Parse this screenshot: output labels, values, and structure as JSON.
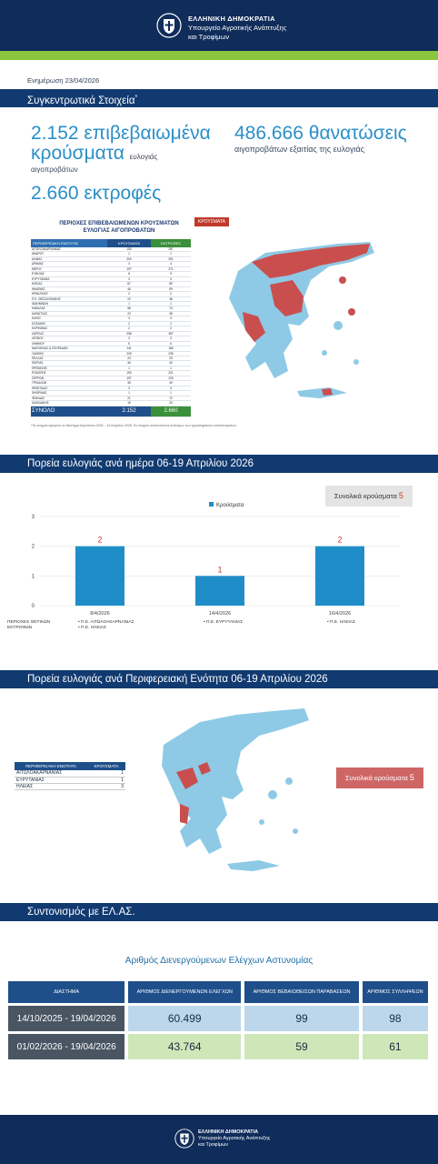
{
  "header": {
    "line1": "ΕΛΛΗΝΙΚΗ ΔΗΜΟΚΡΑΤΙΑ",
    "line2": "Υπουργείο Αγροτικής Ανάπτυξης",
    "line3": "και Τροφίμων"
  },
  "update_text": "Ενημέρωση 23/04/2026",
  "sections": {
    "summary": "Συγκεντρωτικά Στοιχεία",
    "summary_mark": "*",
    "daily": "Πορεία ευλογιάς ανά ημέρα 06-19 Απριλίου 2026",
    "regional": "Πορεία ευλογιάς ανά Περιφερειακή Ενότητα 06-19 Απριλίου 2026",
    "police": "Συντονισμός με ΕΛ.ΑΣ."
  },
  "summary": {
    "cases_number": "2.152",
    "cases_word1": "επιβεβαιωμένα",
    "cases_word2": "κρούσματα",
    "cases_small1": "ευλογιάς",
    "cases_small2": "αιγοπροβάτων",
    "deaths_number": "486.666",
    "deaths_word": "θανατώσεις",
    "deaths_sub": "αιγοπροβάτων εξαιτίας της ευλογιάς",
    "farms_number": "2.660",
    "farms_word": "εκτροφές"
  },
  "region_table": {
    "title1": "ΠΕΡΙΟΧΕΣ ΕΠΙΒΕΒΑΙΩΜΕΝΩΝ ΚΡΟΥΣΜΑΤΩΝ",
    "title2": "ΕΥΛΟΓΙΑΣ ΑΙΓΟΠΡΟΒΑΤΩΝ",
    "headers": [
      "ΠΕΡΙΦΕΡΕΙΑΚΗ ΕΝΟΤΗΤΑ",
      "ΚΡΟΥΣΜΑΤΑ",
      "ΕΚΤΡΟΦΕΣ"
    ],
    "rows": [
      [
        "ΑΙΤΩΛΟΑΚΑΡΝΑΝΙΑΣ",
        "150",
        "287"
      ],
      [
        "ΑΝΔΡΟΥ",
        "1",
        "1"
      ],
      [
        "ΑΧΑΪΑΣ",
        "200",
        "251"
      ],
      [
        "ΔΡΑΜΑΣ",
        "4",
        "4"
      ],
      [
        "ΕΒΡΟΥ",
        "197",
        "271"
      ],
      [
        "ΕΥΒΟΙΑΣ",
        "8",
        "9"
      ],
      [
        "ΕΥΡΥΤΑΝΙΑΣ",
        "3",
        "3"
      ],
      [
        "ΗΛΕΙΑΣ",
        "67",
        "89"
      ],
      [
        "ΗΜΑΘΙΑΣ",
        "46",
        "59"
      ],
      [
        "ΗΡΑΚΛΕΙΟΥ",
        "2",
        "2"
      ],
      [
        "Π.Ε. ΘΕΣΣΑΛΟΝΙΚΗΣ",
        "22",
        "38"
      ],
      [
        "ΙΩΑΝΝΙΝΩΝ",
        "1",
        "1"
      ],
      [
        "ΚΑΒΑΛΑΣ",
        "58",
        "73"
      ],
      [
        "ΚΑΡΔΙΤΣΑΣ",
        "20",
        "38"
      ],
      [
        "ΚΙΛΚΙΣ",
        "3",
        "3"
      ],
      [
        "ΚΟΖΑΝΗΣ",
        "2",
        "2"
      ],
      [
        "ΚΟΡΙΝΘΙΑΣ",
        "2",
        "2"
      ],
      [
        "ΛΑΡΙΣΑΣ",
        "258",
        "387"
      ],
      [
        "ΛΕΣΒΟΥ",
        "3",
        "3"
      ],
      [
        "ΛΗΜΝΟΥ",
        "6",
        "6"
      ],
      [
        "ΜΑΓΝΗΣΙΑΣ & ΣΠΟΡΑΔΩΝ",
        "141",
        "186"
      ],
      [
        "ΞΑΝΘΗΣ",
        "209",
        "235"
      ],
      [
        "ΠΕΛΛΑΣ",
        "23",
        "29"
      ],
      [
        "ΠΙΕΡΙΑΣ",
        "36",
        "40"
      ],
      [
        "ΠΡΕΒΕΖΗΣ",
        "1",
        "1"
      ],
      [
        "ΡΟΔΟΠΗΣ",
        "193",
        "221"
      ],
      [
        "ΣΕΡΡΩΝ",
        "197",
        "226"
      ],
      [
        "ΤΡΙΚΑΛΩΝ",
        "35",
        "49"
      ],
      [
        "ΦΘΙΩΤΙΔΑΣ",
        "3",
        "3"
      ],
      [
        "ΦΛΩΡΙΝΑΣ",
        "1",
        "1"
      ],
      [
        "ΦΩΚΙΔΑΣ",
        "21",
        "72"
      ],
      [
        "ΧΑΛΚΙΔΙΚΗΣ",
        "19",
        "20"
      ]
    ],
    "total_label": "ΣΥΝΟΛΟ",
    "total_cases": "2.152",
    "total_farms": "2.660"
  },
  "map_legend": "ΚΡΟΥΣΜΑΤΑ",
  "footnote": "*Τα στοιχεία αφορούν το διάστημα Αυγούστου 2024 – 19 Απριλίου 2026. Τα στοιχεία ανανεώνονται αναλόγως των εργαστηριακών αποτελεσμάτων.",
  "daily": {
    "total_label": "Συνολικά κρούσματα",
    "total_value": "5",
    "legend": "Κρούσματα",
    "chart_data": {
      "type": "bar",
      "categories": [
        "8/4/2026",
        "14/4/2026",
        "16/4/2026"
      ],
      "series": [
        {
          "name": "Κρούσματα",
          "values": [
            2,
            1,
            2
          ]
        }
      ],
      "ylim": [
        0,
        3
      ],
      "yticks": [
        0,
        1,
        2,
        3
      ]
    },
    "events_label1": "ΠΕΡΙΟΧΕΣ ΘΕΤΙΚΩΝ",
    "events_label2": "ΕΚΤΡΟΦΩΝ",
    "events": [
      [
        "Π.Ε. ΑΙΤΩΛΟΑΚΑΡΝΑΝΙΑΣ",
        "Π.Ε. ΗΛΕΙΑΣ"
      ],
      [
        "Π.Ε. ΕΥΡΥΤΑΝΙΑΣ"
      ],
      [
        "Π.Ε. ΗΛΕΙΑΣ"
      ]
    ],
    "events_bullet": "•"
  },
  "regional": {
    "headers": [
      "ΠΕΡΙΦΕΡΕΙΑΚΗ ΕΝΟΤΗΤΑ",
      "ΚΡΟΥΣΜΑΤΑ"
    ],
    "rows": [
      [
        "ΑΙΤΩΛΟΑΚΑΡΝΑΝΙΑΣ",
        "1"
      ],
      [
        "ΕΥΡΥΤΑΝΙΑΣ",
        "1"
      ],
      [
        "ΗΛΕΙΑΣ",
        "3"
      ]
    ],
    "total_label": "Συνολικά κρούσματα",
    "total_value": "5"
  },
  "police": {
    "title": "Αριθμός Διενεργούμενων Ελέγχων Αστυνομίας",
    "headers": [
      "ΔΙΑΣΤΗΜΑ",
      "ΑΡΙΘΜΟΣ ΔΙΕΝΕΡΓΟΥΜΕΝΩΝ ΕΛΕΓΧΩΝ",
      "ΑΡΙΘΜΟΣ ΒΕΒΑΙΩΘΕΙΣΩΝ ΠΑΡΑΒΑΣΕΩΝ",
      "ΑΡΙΘΜΟΣ ΣΥΛΛΗΨΕΩΝ"
    ],
    "rows": [
      [
        "14/10/2025 - 19/04/2026",
        "60.499",
        "99",
        "98"
      ],
      [
        "01/02/2026 - 19/04/2026",
        "43.764",
        "59",
        "61"
      ]
    ]
  },
  "footer": {
    "line1": "ΕΛΛΗΝΙΚΗ ΔΗΜΟΚΡΑΤΙΑ",
    "line2": "Υπουργείο Αγροτικής Ανάπτυξης",
    "line3": "και Τροφίμων"
  },
  "colors": {
    "navy": "#0f2c5a",
    "accent_blue": "#2a8fc8",
    "bar_blue": "#1f8ec8",
    "map_blue": "#8ecae6",
    "map_red": "#c94f4f",
    "green": "#8cc63f"
  }
}
